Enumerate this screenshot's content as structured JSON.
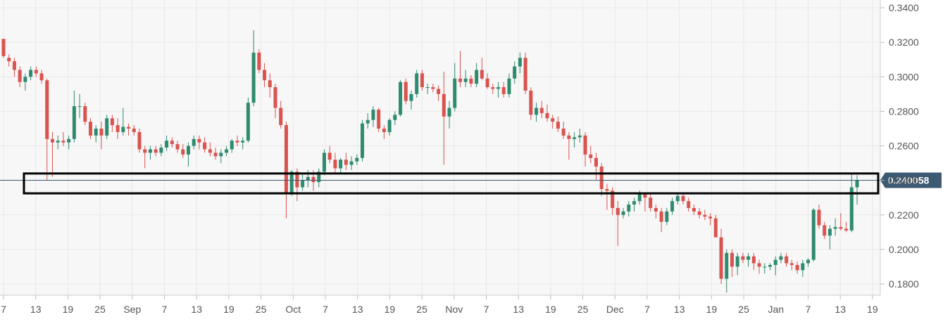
{
  "chart_data": {
    "type": "candlestick",
    "x_tick_labels": [
      "7",
      "13",
      "19",
      "25",
      "Sep",
      "7",
      "13",
      "19",
      "25",
      "Oct",
      "7",
      "13",
      "19",
      "25",
      "Nov",
      "7",
      "13",
      "19",
      "25",
      "Dec",
      "7",
      "13",
      "19",
      "25",
      "Jan",
      "7",
      "13",
      "19"
    ],
    "y_tick_labels": [
      "0.3400",
      "0.3200",
      "0.3000",
      "0.2800",
      "0.2600",
      "0.2400",
      "0.2200",
      "0.2000",
      "0.1800"
    ],
    "ylim": [
      0.1735,
      0.3445
    ],
    "grid": true,
    "current_price": {
      "value": 0.240058,
      "label": "0.240058"
    },
    "highlight_zone": {
      "low": 0.2325,
      "high": 0.244
    },
    "colors": {
      "up": "#2e8b6f",
      "down": "#d9534f",
      "grid": "#e8e8e8",
      "plot_bg": "#f7f7f7",
      "price_tag": "#3d5a73",
      "price_line": "#3d5a73",
      "zone_stroke": "#000000"
    },
    "ohlc": [
      [
        0.322,
        0.322,
        0.311,
        0.312
      ],
      [
        0.311,
        0.313,
        0.306,
        0.309
      ],
      [
        0.309,
        0.311,
        0.3,
        0.304
      ],
      [
        0.304,
        0.306,
        0.294,
        0.297
      ],
      [
        0.297,
        0.302,
        0.292,
        0.3
      ],
      [
        0.3,
        0.306,
        0.298,
        0.304
      ],
      [
        0.304,
        0.306,
        0.3,
        0.302
      ],
      [
        0.302,
        0.304,
        0.296,
        0.298
      ],
      [
        0.298,
        0.299,
        0.24,
        0.264
      ],
      [
        0.264,
        0.268,
        0.242,
        0.262
      ],
      [
        0.262,
        0.266,
        0.258,
        0.263
      ],
      [
        0.263,
        0.268,
        0.26,
        0.262
      ],
      [
        0.262,
        0.266,
        0.258,
        0.264
      ],
      [
        0.264,
        0.292,
        0.262,
        0.283
      ],
      [
        0.283,
        0.29,
        0.276,
        0.283
      ],
      [
        0.283,
        0.285,
        0.272,
        0.274
      ],
      [
        0.274,
        0.276,
        0.264,
        0.266
      ],
      [
        0.266,
        0.272,
        0.262,
        0.27
      ],
      [
        0.27,
        0.274,
        0.258,
        0.266
      ],
      [
        0.266,
        0.278,
        0.264,
        0.276
      ],
      [
        0.276,
        0.278,
        0.268,
        0.272
      ],
      [
        0.272,
        0.276,
        0.264,
        0.268
      ],
      [
        0.268,
        0.282,
        0.266,
        0.271
      ],
      [
        0.271,
        0.273,
        0.266,
        0.27
      ],
      [
        0.27,
        0.272,
        0.266,
        0.268
      ],
      [
        0.268,
        0.27,
        0.256,
        0.258
      ],
      [
        0.258,
        0.26,
        0.247,
        0.256
      ],
      [
        0.256,
        0.26,
        0.252,
        0.258
      ],
      [
        0.258,
        0.26,
        0.254,
        0.256
      ],
      [
        0.256,
        0.261,
        0.254,
        0.259
      ],
      [
        0.259,
        0.266,
        0.257,
        0.263
      ],
      [
        0.263,
        0.265,
        0.259,
        0.261
      ],
      [
        0.261,
        0.263,
        0.256,
        0.258
      ],
      [
        0.258,
        0.261,
        0.253,
        0.255
      ],
      [
        0.255,
        0.262,
        0.248,
        0.26
      ],
      [
        0.26,
        0.266,
        0.258,
        0.264
      ],
      [
        0.264,
        0.266,
        0.258,
        0.262
      ],
      [
        0.262,
        0.265,
        0.256,
        0.258
      ],
      [
        0.258,
        0.262,
        0.254,
        0.256
      ],
      [
        0.256,
        0.259,
        0.252,
        0.254
      ],
      [
        0.254,
        0.258,
        0.25,
        0.256
      ],
      [
        0.256,
        0.26,
        0.254,
        0.258
      ],
      [
        0.258,
        0.264,
        0.256,
        0.263
      ],
      [
        0.263,
        0.266,
        0.26,
        0.262
      ],
      [
        0.262,
        0.265,
        0.258,
        0.263
      ],
      [
        0.263,
        0.288,
        0.262,
        0.285
      ],
      [
        0.285,
        0.327,
        0.283,
        0.314
      ],
      [
        0.314,
        0.316,
        0.302,
        0.304
      ],
      [
        0.304,
        0.308,
        0.294,
        0.298
      ],
      [
        0.298,
        0.302,
        0.288,
        0.294
      ],
      [
        0.294,
        0.296,
        0.276,
        0.282
      ],
      [
        0.282,
        0.286,
        0.27,
        0.272
      ],
      [
        0.272,
        0.274,
        0.218,
        0.233
      ],
      [
        0.233,
        0.246,
        0.231,
        0.245
      ],
      [
        0.245,
        0.247,
        0.228,
        0.236
      ],
      [
        0.236,
        0.244,
        0.234,
        0.24
      ],
      [
        0.24,
        0.246,
        0.236,
        0.242
      ],
      [
        0.242,
        0.246,
        0.234,
        0.239
      ],
      [
        0.239,
        0.247,
        0.236,
        0.245
      ],
      [
        0.245,
        0.258,
        0.243,
        0.256
      ],
      [
        0.256,
        0.26,
        0.25,
        0.252
      ],
      [
        0.252,
        0.256,
        0.244,
        0.247
      ],
      [
        0.247,
        0.253,
        0.244,
        0.252
      ],
      [
        0.252,
        0.256,
        0.246,
        0.249
      ],
      [
        0.249,
        0.254,
        0.246,
        0.251
      ],
      [
        0.251,
        0.255,
        0.249,
        0.253
      ],
      [
        0.253,
        0.275,
        0.251,
        0.273
      ],
      [
        0.273,
        0.279,
        0.27,
        0.275
      ],
      [
        0.275,
        0.283,
        0.271,
        0.281
      ],
      [
        0.281,
        0.282,
        0.268,
        0.27
      ],
      [
        0.27,
        0.272,
        0.264,
        0.268
      ],
      [
        0.268,
        0.276,
        0.266,
        0.275
      ],
      [
        0.275,
        0.28,
        0.272,
        0.278
      ],
      [
        0.278,
        0.298,
        0.277,
        0.297
      ],
      [
        0.297,
        0.299,
        0.284,
        0.286
      ],
      [
        0.286,
        0.292,
        0.281,
        0.29
      ],
      [
        0.29,
        0.304,
        0.288,
        0.302
      ],
      [
        0.302,
        0.304,
        0.292,
        0.294
      ],
      [
        0.294,
        0.296,
        0.29,
        0.294
      ],
      [
        0.294,
        0.296,
        0.291,
        0.293
      ],
      [
        0.293,
        0.295,
        0.286,
        0.29
      ],
      [
        0.29,
        0.303,
        0.249,
        0.277
      ],
      [
        0.277,
        0.286,
        0.27,
        0.282
      ],
      [
        0.282,
        0.308,
        0.28,
        0.299
      ],
      [
        0.299,
        0.315,
        0.294,
        0.297
      ],
      [
        0.297,
        0.304,
        0.294,
        0.299
      ],
      [
        0.299,
        0.301,
        0.294,
        0.296
      ],
      [
        0.296,
        0.308,
        0.294,
        0.304
      ],
      [
        0.304,
        0.311,
        0.298,
        0.299
      ],
      [
        0.299,
        0.302,
        0.293,
        0.294
      ],
      [
        0.294,
        0.296,
        0.29,
        0.293
      ],
      [
        0.293,
        0.297,
        0.288,
        0.294
      ],
      [
        0.294,
        0.297,
        0.288,
        0.29
      ],
      [
        0.29,
        0.302,
        0.288,
        0.299
      ],
      [
        0.299,
        0.309,
        0.296,
        0.306
      ],
      [
        0.306,
        0.314,
        0.302,
        0.311
      ],
      [
        0.311,
        0.314,
        0.29,
        0.292
      ],
      [
        0.292,
        0.294,
        0.275,
        0.278
      ],
      [
        0.278,
        0.285,
        0.274,
        0.282
      ],
      [
        0.282,
        0.286,
        0.276,
        0.279
      ],
      [
        0.279,
        0.284,
        0.274,
        0.276
      ],
      [
        0.276,
        0.278,
        0.27,
        0.274
      ],
      [
        0.274,
        0.277,
        0.268,
        0.27
      ],
      [
        0.27,
        0.274,
        0.264,
        0.266
      ],
      [
        0.266,
        0.268,
        0.252,
        0.264
      ],
      [
        0.264,
        0.268,
        0.259,
        0.265
      ],
      [
        0.265,
        0.27,
        0.262,
        0.266
      ],
      [
        0.266,
        0.268,
        0.248,
        0.255
      ],
      [
        0.255,
        0.26,
        0.25,
        0.253
      ],
      [
        0.253,
        0.256,
        0.24,
        0.248
      ],
      [
        0.248,
        0.25,
        0.231,
        0.235
      ],
      [
        0.235,
        0.238,
        0.223,
        0.234
      ],
      [
        0.234,
        0.236,
        0.22,
        0.224
      ],
      [
        0.224,
        0.228,
        0.202,
        0.22
      ],
      [
        0.22,
        0.224,
        0.218,
        0.222
      ],
      [
        0.222,
        0.228,
        0.219,
        0.226
      ],
      [
        0.226,
        0.23,
        0.222,
        0.228
      ],
      [
        0.228,
        0.234,
        0.226,
        0.232
      ],
      [
        0.232,
        0.233,
        0.222,
        0.23
      ],
      [
        0.23,
        0.232,
        0.222,
        0.224
      ],
      [
        0.224,
        0.226,
        0.218,
        0.222
      ],
      [
        0.222,
        0.224,
        0.21,
        0.216
      ],
      [
        0.216,
        0.224,
        0.214,
        0.222
      ],
      [
        0.222,
        0.23,
        0.22,
        0.228
      ],
      [
        0.228,
        0.233,
        0.226,
        0.231
      ],
      [
        0.231,
        0.233,
        0.226,
        0.228
      ],
      [
        0.228,
        0.23,
        0.222,
        0.224
      ],
      [
        0.224,
        0.226,
        0.22,
        0.222
      ],
      [
        0.222,
        0.224,
        0.218,
        0.22
      ],
      [
        0.22,
        0.223,
        0.217,
        0.219
      ],
      [
        0.219,
        0.221,
        0.214,
        0.218
      ],
      [
        0.218,
        0.22,
        0.208,
        0.207
      ],
      [
        0.207,
        0.212,
        0.18,
        0.183
      ],
      [
        0.183,
        0.2,
        0.175,
        0.198
      ],
      [
        0.198,
        0.2,
        0.184,
        0.19
      ],
      [
        0.19,
        0.198,
        0.185,
        0.196
      ],
      [
        0.196,
        0.198,
        0.192,
        0.194
      ],
      [
        0.194,
        0.198,
        0.19,
        0.196
      ],
      [
        0.196,
        0.198,
        0.188,
        0.192
      ],
      [
        0.192,
        0.194,
        0.186,
        0.19
      ],
      [
        0.19,
        0.192,
        0.186,
        0.19
      ],
      [
        0.19,
        0.192,
        0.188,
        0.191
      ],
      [
        0.191,
        0.196,
        0.185,
        0.194
      ],
      [
        0.194,
        0.198,
        0.192,
        0.196
      ],
      [
        0.196,
        0.198,
        0.19,
        0.192
      ],
      [
        0.192,
        0.194,
        0.188,
        0.191
      ],
      [
        0.191,
        0.193,
        0.186,
        0.188
      ],
      [
        0.188,
        0.194,
        0.184,
        0.192
      ],
      [
        0.192,
        0.195,
        0.19,
        0.194
      ],
      [
        0.194,
        0.224,
        0.193,
        0.223
      ],
      [
        0.223,
        0.226,
        0.212,
        0.214
      ],
      [
        0.214,
        0.216,
        0.206,
        0.208
      ],
      [
        0.208,
        0.214,
        0.2,
        0.212
      ],
      [
        0.212,
        0.218,
        0.208,
        0.213
      ],
      [
        0.213,
        0.221,
        0.211,
        0.212
      ],
      [
        0.212,
        0.216,
        0.21,
        0.211
      ],
      [
        0.211,
        0.244,
        0.21,
        0.236
      ],
      [
        0.236,
        0.243,
        0.226,
        0.24
      ]
    ]
  }
}
